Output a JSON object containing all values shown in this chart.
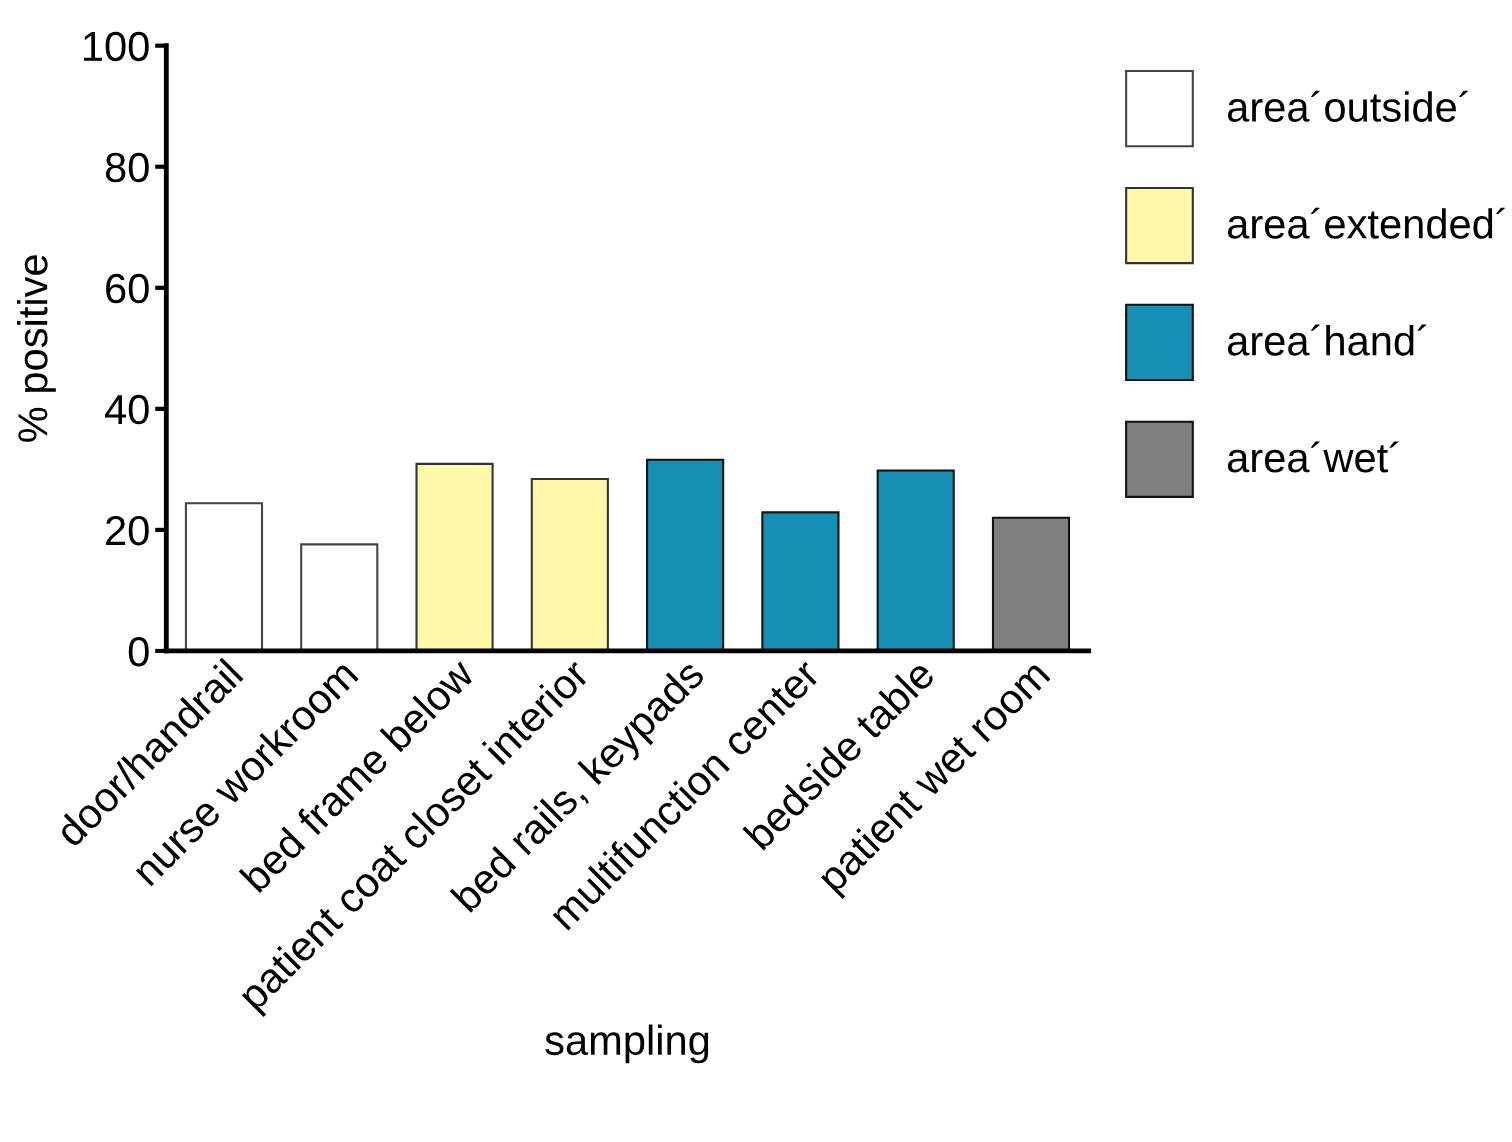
{
  "chart_data": {
    "type": "bar",
    "xlabel": "sampling",
    "ylabel": "% positive",
    "categories": [
      "door/handrail",
      "nurse workroom",
      "bed frame below",
      "patient coat closet interior",
      "bed rails, keypads",
      "multifunction center",
      "bedside table",
      "patient wet room"
    ],
    "series": [
      {
        "name": "area´outside´",
        "color": "#ffffff",
        "values": [
          24.4,
          17.6,
          null,
          null,
          null,
          null,
          null,
          null
        ]
      },
      {
        "name": "area´extended´",
        "color": "#fff8a8",
        "values": [
          null,
          null,
          30.9,
          28.4,
          null,
          null,
          null,
          null
        ]
      },
      {
        "name": "area´hand´",
        "color": "#1590b4",
        "values": [
          null,
          null,
          null,
          null,
          31.6,
          22.9,
          29.8,
          null
        ]
      },
      {
        "name": "area´wet´",
        "color": "#7f7f7f",
        "values": [
          null,
          null,
          null,
          null,
          null,
          null,
          null,
          22.0
        ]
      }
    ],
    "ylim": [
      0,
      100
    ],
    "yticks": [
      0,
      20,
      40,
      60,
      80,
      100
    ],
    "grid": false,
    "legend": "top right"
  }
}
